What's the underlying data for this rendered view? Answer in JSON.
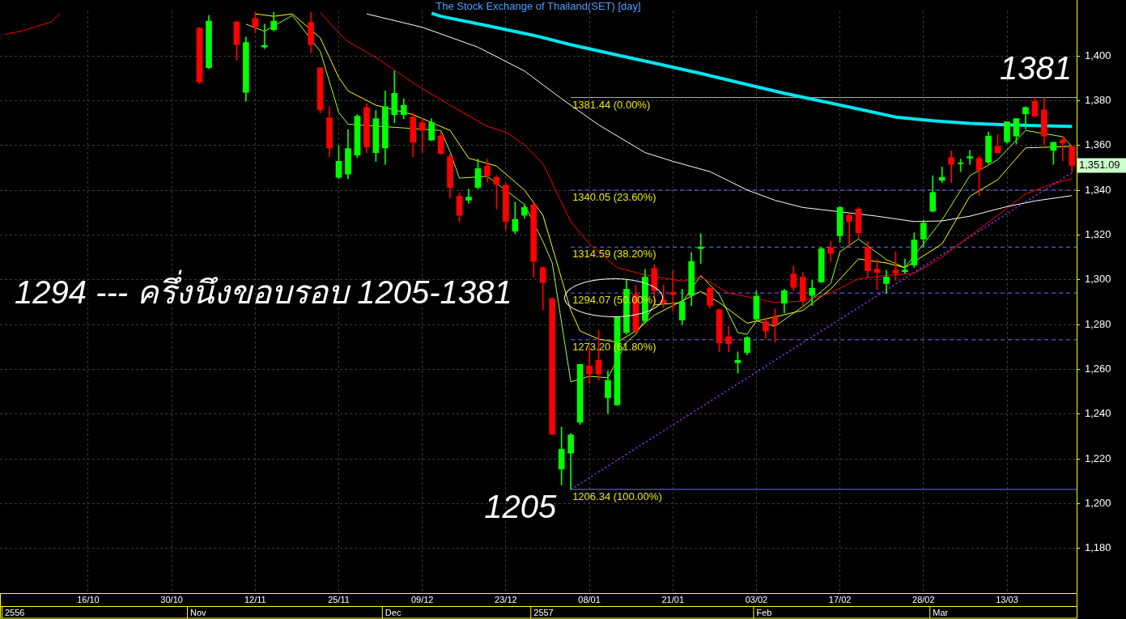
{
  "chart_data": {
    "type": "candlestick",
    "title": "The Stock Exchange of Thailand(SET) [day]",
    "categories": [
      null,
      null,
      null,
      null,
      null,
      null,
      null,
      null,
      null,
      "16/10",
      null,
      null,
      null,
      null,
      null,
      null,
      null,
      null,
      "30/10",
      null,
      null,
      null,
      null,
      null,
      null,
      null,
      null,
      "12/11",
      null,
      null,
      null,
      null,
      null,
      null,
      null,
      null,
      "25/11",
      null,
      null,
      null,
      null,
      null,
      null,
      null,
      null,
      "09/12",
      null,
      null,
      null,
      null,
      null,
      null,
      null,
      null,
      "23/12",
      null,
      null,
      null,
      null,
      null,
      null,
      null,
      null,
      "08/01",
      null,
      null,
      null,
      null,
      null,
      null,
      null,
      null,
      "21/01",
      null,
      null,
      null,
      null,
      null,
      null,
      null,
      null,
      "03/02",
      null,
      null,
      null,
      null,
      null,
      null,
      null,
      null,
      "17/02",
      null,
      null,
      null,
      null,
      null,
      null,
      null,
      null,
      "28/02",
      null,
      null,
      null,
      null,
      null,
      null,
      null,
      null,
      "13/03",
      null,
      null,
      null,
      null,
      null,
      null,
      null
    ],
    "ohlc": [
      null,
      null,
      null,
      null,
      null,
      null,
      null,
      null,
      null,
      null,
      null,
      null,
      null,
      null,
      null,
      null,
      null,
      null,
      null,
      null,
      null,
      [
        1412.4,
        1412.8,
        1387.6,
        1388.3
      ],
      [
        1394.7,
        1418.1,
        1394.3,
        1415.6
      ],
      null,
      null,
      [
        1415.2,
        1415.6,
        1397.9,
        1405.0
      ],
      [
        1383.7,
        1408.5,
        1379.8,
        1406.0
      ],
      [
        1416.7,
        1419.5,
        1410.3,
        1413.1
      ],
      [
        1404.0,
        1414.2,
        1403.2,
        1404.7
      ],
      [
        1411.7,
        1419.5,
        1411.0,
        1415.6
      ],
      null,
      null,
      null,
      [
        1414.9,
        1419.5,
        1401.4,
        1405.0
      ],
      [
        1394.7,
        1394.7,
        1374.5,
        1375.9
      ],
      [
        1372.4,
        1377.3,
        1355.0,
        1358.9
      ],
      [
        1345.8,
        1360.0,
        1345.1,
        1352.9
      ],
      [
        1347.2,
        1367.0,
        1345.1,
        1358.6
      ],
      [
        1355.7,
        1373.8,
        1354.6,
        1373.1
      ],
      [
        1377.0,
        1378.7,
        1356.8,
        1359.3
      ],
      [
        1356.8,
        1375.6,
        1352.9,
        1372.0
      ],
      [
        1358.9,
        1384.4,
        1351.5,
        1377.3
      ],
      [
        1373.8,
        1393.3,
        1370.2,
        1383.3
      ],
      [
        1373.8,
        1380.9,
        1372.0,
        1378.0
      ],
      [
        1372.7,
        1374.5,
        1355.0,
        1361.4
      ],
      [
        1370.2,
        1372.0,
        1356.8,
        1366.7
      ],
      [
        1362.4,
        1372.0,
        1362.1,
        1370.2
      ],
      [
        1364.2,
        1366.0,
        1356.1,
        1356.4
      ],
      [
        1355.0,
        1356.1,
        1336.6,
        1341.2
      ],
      [
        1337.3,
        1338.7,
        1326.0,
        1328.8
      ],
      [
        1335.5,
        1340.5,
        1334.1,
        1336.9
      ],
      [
        1341.2,
        1353.9,
        1340.5,
        1349.7
      ],
      [
        1350.8,
        1353.9,
        1343.7,
        1346.5
      ],
      [
        1345.8,
        1346.5,
        1331.6,
        1342.6
      ],
      [
        1342.3,
        1343.0,
        1322.4,
        1326.0
      ],
      [
        1321.7,
        1334.8,
        1320.6,
        1327.0
      ],
      [
        1328.8,
        1333.7,
        1327.4,
        1332.3
      ],
      [
        1333.4,
        1334.1,
        1301.2,
        1308.2
      ],
      [
        1305.4,
        1305.8,
        1286.6,
        1298.7
      ],
      [
        1291.6,
        1292.0,
        1230.7,
        1231.0
      ],
      [
        1215.4,
        1234.2,
        1208.3,
        1224.3
      ],
      [
        1222.5,
        1231.4,
        1206.3,
        1230.7
      ],
      [
        1236.3,
        1262.2,
        1235.3,
        1262.2
      ],
      [
        1261.5,
        1270.0,
        1253.7,
        1257.9
      ],
      [
        1264.0,
        1277.4,
        1255.1,
        1257.9
      ],
      [
        1247.3,
        1259.3,
        1240.2,
        1255.1
      ],
      [
        1244.1,
        1283.4,
        1243.8,
        1283.4
      ],
      [
        1276.4,
        1300.1,
        1275.6,
        1295.8
      ],
      [
        1293.4,
        1297.6,
        1276.4,
        1277.1
      ],
      [
        1281.7,
        1304.7,
        1281.0,
        1301.2
      ],
      [
        1305.1,
        1306.8,
        1288.0,
        1295.1
      ],
      [
        1290.9,
        1297.6,
        1287.7,
        1289.5
      ],
      [
        1294.4,
        1304.0,
        1286.0,
        1293.4
      ],
      [
        1282.0,
        1295.8,
        1279.9,
        1290.2
      ],
      [
        1293.0,
        1312.1,
        1288.4,
        1308.2
      ],
      [
        1313.9,
        1320.6,
        1307.2,
        1314.6
      ],
      [
        1296.2,
        1296.6,
        1287.3,
        1288.4
      ],
      [
        1286.6,
        1287.0,
        1267.8,
        1271.8
      ],
      [
        1274.6,
        1279.2,
        1267.8,
        1271.4
      ],
      [
        1262.9,
        1267.8,
        1258.3,
        1264.0
      ],
      [
        1267.5,
        1274.6,
        1266.4,
        1274.2
      ],
      [
        1282.4,
        1295.1,
        1282.0,
        1292.7
      ],
      [
        1281.3,
        1282.7,
        1273.9,
        1277.1
      ],
      [
        1283.1,
        1287.0,
        1272.1,
        1279.9
      ],
      [
        1289.5,
        1295.8,
        1285.2,
        1295.1
      ],
      [
        1302.6,
        1306.1,
        1295.1,
        1296.6
      ],
      [
        1301.2,
        1303.3,
        1288.4,
        1290.5
      ],
      [
        1293.0,
        1299.7,
        1288.4,
        1296.2
      ],
      [
        1299.0,
        1314.3,
        1298.7,
        1313.9
      ],
      [
        1314.3,
        1317.1,
        1308.2,
        1311.8
      ],
      [
        1319.6,
        1332.7,
        1316.7,
        1332.3
      ],
      [
        1328.8,
        1329.5,
        1314.9,
        1326.0
      ],
      [
        1331.6,
        1332.3,
        1318.4,
        1321.0
      ],
      [
        1314.3,
        1317.1,
        1301.2,
        1304.0
      ],
      [
        1304.7,
        1309.3,
        1295.5,
        1303.3
      ],
      [
        1298.3,
        1304.3,
        1294.0,
        1301.2
      ],
      [
        1304.3,
        1312.5,
        1299.7,
        1302.9
      ],
      [
        1303.6,
        1309.3,
        1302.9,
        1304.3
      ],
      [
        1306.5,
        1321.0,
        1305.4,
        1317.8
      ],
      [
        1318.2,
        1326.7,
        1314.6,
        1325.3
      ],
      [
        1330.6,
        1346.5,
        1330.2,
        1339.0
      ],
      [
        1344.4,
        1350.4,
        1343.3,
        1345.8
      ],
      [
        1354.6,
        1357.5,
        1343.3,
        1351.5
      ],
      [
        1351.8,
        1353.9,
        1348.3,
        1352.2
      ],
      [
        1354.3,
        1357.8,
        1351.5,
        1355.0
      ],
      [
        1354.3,
        1355.4,
        1337.6,
        1349.0
      ],
      [
        1352.5,
        1366.0,
        1351.8,
        1364.2
      ],
      [
        1359.6,
        1364.9,
        1356.8,
        1356.8
      ],
      [
        1361.7,
        1370.6,
        1361.0,
        1370.6
      ],
      [
        1364.2,
        1372.0,
        1360.7,
        1372.0
      ],
      [
        1374.1,
        1377.3,
        1367.4,
        1377.0
      ],
      [
        1379.8,
        1381.4,
        1372.7,
        1373.1
      ],
      [
        1375.9,
        1381.4,
        1360.3,
        1364.2
      ],
      [
        1357.8,
        1361.4,
        1351.5,
        1361.4
      ],
      [
        1362.4,
        1364.2,
        1353.2,
        1361.0
      ],
      [
        1359.6,
        1359.9,
        1348.3,
        1351.1
      ]
    ],
    "colors": [
      null,
      null,
      null,
      null,
      null,
      null,
      null,
      null,
      null,
      null,
      null,
      null,
      null,
      null,
      null,
      null,
      null,
      null,
      null,
      null,
      null,
      "#ff0000",
      "#00ff00",
      null,
      null,
      "#ff0000",
      "#00ff00",
      "#ff0000",
      "#00ff00",
      "#00ff00",
      null,
      null,
      null,
      "#ff0000",
      "#ff0000",
      "#ff0000",
      "#00ff00",
      "#00ff00",
      "#00ff00",
      "#ff0000",
      "#00ff00",
      "#00ff00",
      "#00ff00",
      "#00ff00",
      "#ff0000",
      "#ff0000",
      "#00ff00",
      "#ff0000",
      "#ff0000",
      "#ff0000",
      "#00ff00",
      "#00ff00",
      "#ff0000",
      "#ff0000",
      "#ff0000",
      "#00ff00",
      "#00ff00",
      "#ff0000",
      "#ff0000",
      "#ff0000",
      "#00ff00",
      "#00ff00",
      "#00ff00",
      "#ff0000",
      "#ff0000",
      "#00ff00",
      "#00ff00",
      "#00ff00",
      "#ff0000",
      "#00ff00",
      "#ff0000",
      "#ff0000",
      "#ff0000",
      "#00ff00",
      "#00ff00",
      "#00ff00",
      "#ff0000",
      "#ff0000",
      "#ff0000",
      "#00ff00",
      "#00ff00",
      "#00ff00",
      "#ff0000",
      "#ff0000",
      "#00ff00",
      "#ff0000",
      "#ff0000",
      "#00ff00",
      "#00ff00",
      "#ff0000",
      "#00ff00",
      "#ff0000",
      "#ff0000",
      "#ff0000",
      "#ff0000",
      "#00ff00",
      "#ff0000",
      "#00ff00",
      "#00ff00",
      "#00ff00",
      "#00ff00",
      "#00ff00",
      "#ff0000",
      "#00ff00",
      "#00ff00",
      "#ff0000",
      "#00ff00",
      "#ff0000",
      "#00ff00",
      "#00ff00",
      "#00ff00",
      "#ff0000",
      "#ff0000",
      "#00ff00",
      "#ff0000",
      "#ff0000"
    ],
    "series": [
      {
        "type": "line",
        "color": "#00e5ee",
        "values": [
          null,
          null,
          null,
          null,
          null,
          null,
          null,
          null,
          null,
          null,
          null,
          null,
          null,
          null,
          null,
          null,
          null,
          null,
          null,
          null,
          null,
          null,
          null,
          null,
          null,
          null,
          null,
          null,
          null,
          null,
          null,
          null,
          null,
          null,
          null,
          null,
          null,
          null,
          null,
          null,
          null,
          null,
          null,
          null,
          null,
          null,
          1419.1,
          1417.7,
          null,
          null,
          null,
          null,
          1413.5,
          null,
          null,
          null,
          null,
          1409.2,
          null,
          null,
          null,
          1405.0,
          null,
          null,
          null,
          null,
          1400.4,
          null,
          null,
          null,
          1396.8,
          null,
          null,
          null,
          null,
          1392.2,
          null,
          null,
          null,
          null,
          1387.2,
          null,
          null,
          null,
          1383.3,
          null,
          null,
          null,
          1379.8,
          null,
          null,
          null,
          1376.3,
          null,
          null,
          null,
          1372.7,
          null,
          null,
          null,
          1371.0,
          null,
          null,
          null,
          1369.9,
          null,
          null,
          null,
          1369.2,
          null,
          null,
          null,
          null,
          null,
          null,
          1368.5
        ]
      },
      {
        "type": "line",
        "color": "#ffffff",
        "values": [
          null,
          null,
          null,
          null,
          null,
          null,
          null,
          null,
          null,
          null,
          null,
          null,
          null,
          null,
          null,
          null,
          null,
          null,
          null,
          null,
          null,
          null,
          null,
          null,
          null,
          null,
          null,
          null,
          null,
          null,
          null,
          null,
          null,
          null,
          null,
          null,
          null,
          null,
          null,
          1418.8,
          null,
          null,
          null,
          null,
          null,
          1412.8,
          null,
          null,
          null,
          null,
          null,
          1403.9,
          null,
          null,
          null,
          null,
          1393.3,
          null,
          null,
          null,
          1380.9,
          null,
          null,
          null,
          1369.2,
          null,
          null,
          null,
          null,
          1356.8,
          null,
          null,
          1352.9,
          null,
          null,
          null,
          1348.3,
          null,
          null,
          null,
          1340.1,
          null,
          null,
          1335.5,
          null,
          null,
          1332.3,
          null,
          null,
          null,
          null,
          null,
          null,
          null,
          1328.4,
          null,
          null,
          null,
          1326.0,
          null,
          null,
          1326.3,
          null,
          null,
          1328.4,
          null,
          null,
          null,
          1332.7,
          null,
          null,
          1335.2,
          null,
          null,
          null,
          1337.6
        ]
      },
      {
        "type": "line",
        "color": "#ff0000",
        "values": [
          null,
          null,
          null,
          null,
          null,
          null,
          null,
          null,
          null,
          null,
          null,
          null,
          null,
          null,
          null,
          null,
          null,
          null,
          null,
          null,
          null,
          null,
          null,
          null,
          null,
          null,
          null,
          null,
          null,
          null,
          null,
          null,
          null,
          null,
          1419.5,
          null,
          1410.3,
          1406.4,
          null,
          null,
          1399.3,
          null,
          null,
          null,
          1388.0,
          null,
          null,
          null,
          1378.0,
          null,
          null,
          null,
          1368.5,
          null,
          1366.0,
          null,
          1360.3,
          null,
          1351.8,
          null,
          null,
          1326.0,
          null,
          1316.0,
          null,
          null,
          1305.4,
          null,
          null,
          1302.2,
          null,
          null,
          null,
          1299.4,
          null,
          1301.2,
          null,
          null,
          1294.1,
          null,
          null,
          null,
          null,
          1289.8,
          null,
          null,
          1290.5,
          null,
          null,
          1294.1,
          null,
          null,
          1300.4,
          null,
          null,
          1301.9,
          null,
          null,
          1302.9,
          null,
          null,
          1310.0,
          null,
          null,
          1319.6,
          null,
          null,
          1328.8,
          null,
          null,
          1338.3,
          null,
          null,
          1343.0,
          null,
          1345.1
        ]
      },
      {
        "type": "line",
        "color": "#ffff00",
        "values": [
          null,
          null,
          null,
          null,
          null,
          null,
          null,
          null,
          null,
          null,
          null,
          null,
          null,
          null,
          null,
          null,
          null,
          null,
          null,
          null,
          null,
          null,
          null,
          null,
          null,
          null,
          null,
          1418.8,
          null,
          1417.7,
          null,
          1418.8,
          null,
          null,
          1408.1,
          null,
          1390.4,
          1384.4,
          null,
          null,
          1378.0,
          null,
          null,
          null,
          1373.8,
          null,
          null,
          null,
          1366.7,
          null,
          1354.3,
          null,
          null,
          1350.8,
          null,
          null,
          1340.1,
          null,
          1328.8,
          null,
          1300.5,
          1286.3,
          1277.1,
          null,
          1273.5,
          null,
          1272.1,
          null,
          1277.1,
          null,
          1284.2,
          null,
          null,
          null,
          null,
          1294.8,
          null,
          1289.8,
          null,
          null,
          1280.6,
          null,
          null,
          null,
          null,
          null,
          1286.3,
          null,
          null,
          1295.8,
          null,
          null,
          1309.3,
          null,
          null,
          1307.5,
          null,
          1305.4,
          null,
          null,
          null,
          1316.0,
          null,
          null,
          1337.3,
          null,
          null,
          1344.7,
          null,
          null,
          1358.9,
          null,
          null,
          null,
          null,
          1359.6
        ]
      },
      {
        "type": "line",
        "color": "#a6ff2e",
        "values": [
          null,
          null,
          null,
          null,
          null,
          null,
          null,
          null,
          null,
          null,
          null,
          null,
          null,
          null,
          null,
          null,
          null,
          null,
          null,
          null,
          null,
          null,
          null,
          null,
          null,
          null,
          1414.2,
          null,
          1411.0,
          null,
          null,
          1418.1,
          null,
          null,
          1402.1,
          null,
          1374.8,
          1369.5,
          null,
          null,
          null,
          null,
          null,
          null,
          null,
          null,
          null,
          1366.7,
          1357.1,
          1345.4,
          null,
          null,
          1346.2,
          null,
          null,
          null,
          1333.7,
          null,
          1317.1,
          1307.5,
          null,
          1254.4,
          null,
          1256.9,
          null,
          1256.2,
          null,
          1272.1,
          1275.6,
          null,
          1288.8,
          null,
          null,
          1289.8,
          null,
          1301.9,
          null,
          1293.4,
          null,
          1276.4,
          1275.6,
          1281.7,
          null,
          1279.2,
          null,
          null,
          1288.0,
          null,
          null,
          1298.3,
          1312.5,
          null,
          1318.2,
          null,
          null,
          1309.0,
          null,
          1305.4,
          null,
          null,
          null,
          1326.7,
          null,
          null,
          1346.5,
          null,
          null,
          1353.6,
          null,
          null,
          1366.7,
          null,
          null,
          null,
          1363.9,
          1359.6
        ]
      },
      {
        "type": "line",
        "color": "#9933ff",
        "line_style": "dotted",
        "values": [
          null,
          null,
          null,
          null,
          null,
          null,
          null,
          null,
          null,
          null,
          null,
          null,
          null,
          null,
          null,
          null,
          null,
          null,
          null,
          null,
          null,
          null,
          null,
          null,
          null,
          null,
          null,
          null,
          null,
          null,
          null,
          null,
          null,
          null,
          null,
          null,
          null,
          null,
          null,
          null,
          null,
          null,
          null,
          null,
          null,
          null,
          null,
          null,
          null,
          null,
          null,
          null,
          null,
          null,
          null,
          null,
          null,
          null,
          null,
          null,
          null,
          1206.3,
          null,
          null,
          null,
          null,
          null,
          null,
          null,
          null,
          null,
          null,
          null,
          null,
          null,
          null,
          null,
          null,
          null,
          null,
          null,
          null,
          null,
          null,
          null,
          null,
          null,
          null,
          null,
          null,
          null,
          null,
          null,
          null,
          null,
          null,
          null,
          null,
          null,
          null,
          null,
          null,
          null,
          null,
          null,
          null,
          null,
          null,
          null,
          null,
          null,
          null,
          null,
          null,
          null,
          1347.9
        ]
      },
      {
        "type": "line",
        "color": "#ff0000",
        "values": [
          1409.6,
          null,
          1411.3,
          null,
          null,
          1415.2,
          1419.1,
          null,
          null,
          null,
          null,
          null,
          null,
          null,
          null,
          null,
          null,
          null,
          null,
          null,
          null,
          null,
          null,
          null,
          null,
          null,
          null,
          null,
          null,
          null,
          null,
          null,
          null,
          null,
          null,
          null,
          null,
          null,
          null,
          null,
          null,
          null,
          null,
          null,
          null,
          null,
          null,
          null,
          null,
          null,
          null,
          null,
          null,
          null,
          null,
          null,
          null,
          null,
          null,
          null,
          null,
          null,
          null,
          null,
          null,
          null,
          null,
          null,
          null,
          null,
          null,
          null,
          null,
          null,
          null,
          null,
          null,
          null,
          null,
          null,
          null,
          null,
          null,
          null,
          null,
          null,
          null,
          null,
          null,
          null,
          null,
          null,
          null,
          null,
          null,
          null,
          null,
          null,
          null,
          null,
          null,
          null,
          null,
          null,
          null,
          null,
          null,
          null,
          null,
          null,
          null,
          null,
          null,
          null,
          null,
          null
        ]
      }
    ],
    "ylim": [
      1160,
      1420
    ],
    "yticks": [
      {
        "value": 1180,
        "label": "1,180"
      },
      {
        "value": 1200,
        "label": "1,200"
      },
      {
        "value": 1220,
        "label": "1,220"
      },
      {
        "value": 1240,
        "label": "1,240"
      },
      {
        "value": 1260,
        "label": "1,260"
      },
      {
        "value": 1280,
        "label": "1,280"
      },
      {
        "value": 1300,
        "label": "1,300"
      },
      {
        "value": 1320,
        "label": "1,320"
      },
      {
        "value": 1340,
        "label": "1,340"
      },
      {
        "value": 1360,
        "label": "1,360"
      },
      {
        "value": 1380,
        "label": "1,380"
      },
      {
        "value": 1400,
        "label": "1,400"
      }
    ],
    "ref_lines": [
      {
        "axis": "y",
        "value": 1381.44,
        "label": "1381.44 (0.00%)",
        "color": "#b0b0b0",
        "line_style": "solid"
      },
      {
        "axis": "y",
        "value": 1340.05,
        "label": "1340.05 (23.60%)",
        "color": "#6f6fff",
        "line_style": "dashed"
      },
      {
        "axis": "y",
        "value": 1314.59,
        "label": "1314.59 (38.20%)",
        "color": "#6f6fff",
        "line_style": "dashed"
      },
      {
        "axis": "y",
        "value": 1294.07,
        "label": "1294.07 (50.00%)",
        "color": "#6f6fff",
        "line_style": "dashed"
      },
      {
        "axis": "y",
        "value": 1273.2,
        "label": "1273.20 (61.80%)",
        "color": "#6f6fff",
        "line_style": "dashed"
      },
      {
        "axis": "y",
        "value": 1206.34,
        "label": "1206.34 (100.00%)",
        "color": "#6f6fff",
        "line_style": "solid"
      }
    ],
    "annotations": [
      "1294 --- ครึ่งนึงขอบรอบ 1205-1381",
      "1381",
      "1205",
      "1,351.09",
      "2556",
      "Nov",
      "Dec",
      "2557",
      "Feb",
      "Mar"
    ],
    "grid": true
  }
}
